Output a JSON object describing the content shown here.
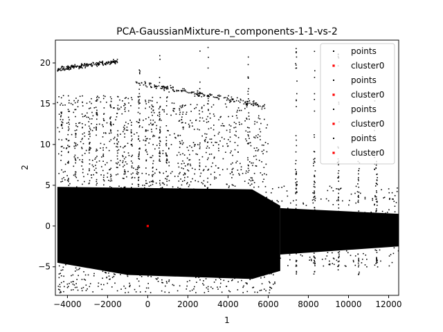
{
  "chart_data": {
    "type": "scatter",
    "title": "PCA-GaussianMixture-n_components-1-1-vs-2",
    "xlabel": "1",
    "ylabel": "2",
    "xlim": [
      -4600,
      12500
    ],
    "ylim": [
      -8.5,
      22.8
    ],
    "xticks": [
      -4000,
      -2000,
      0,
      2000,
      4000,
      6000,
      8000,
      10000,
      12000
    ],
    "xtick_labels": [
      "−4000",
      "−2000",
      "0",
      "2000",
      "4000",
      "6000",
      "8000",
      "10000",
      "12000"
    ],
    "yticks": [
      -5,
      0,
      5,
      10,
      15,
      20
    ],
    "ytick_labels": [
      "−5",
      "0",
      "5",
      "10",
      "15",
      "20"
    ],
    "grid": false,
    "legend_position": "top-right",
    "legend": [
      {
        "label": "points",
        "color": "#000000"
      },
      {
        "label": "cluster0",
        "color": "#ff0000"
      },
      {
        "label": "points",
        "color": "#000000"
      },
      {
        "label": "cluster0",
        "color": "#ff0000"
      },
      {
        "label": "points",
        "color": "#000000"
      },
      {
        "label": "cluster0",
        "color": "#ff0000"
      },
      {
        "label": "points",
        "color": "#000000"
      },
      {
        "label": "cluster0",
        "color": "#ff0000"
      }
    ],
    "series": [
      {
        "name": "points",
        "color": "#000000",
        "kind": "dense point cloud",
        "regions": [
          {
            "x": [
              -4500,
              6500
            ],
            "y": [
              -6,
              5
            ],
            "density": "very high"
          },
          {
            "x": [
              6500,
              12400
            ],
            "y": [
              -3,
              4
            ],
            "density": "high"
          },
          {
            "x": [
              -4500,
              1500
            ],
            "y": [
              5,
              16
            ],
            "density": "medium"
          },
          {
            "x": [
              -4500,
              6000
            ],
            "y": [
              14.5,
              20
            ],
            "density": "band"
          }
        ]
      },
      {
        "name": "cluster0",
        "color": "#ff0000",
        "points": [
          {
            "x": 0,
            "y": 0
          }
        ]
      }
    ]
  }
}
